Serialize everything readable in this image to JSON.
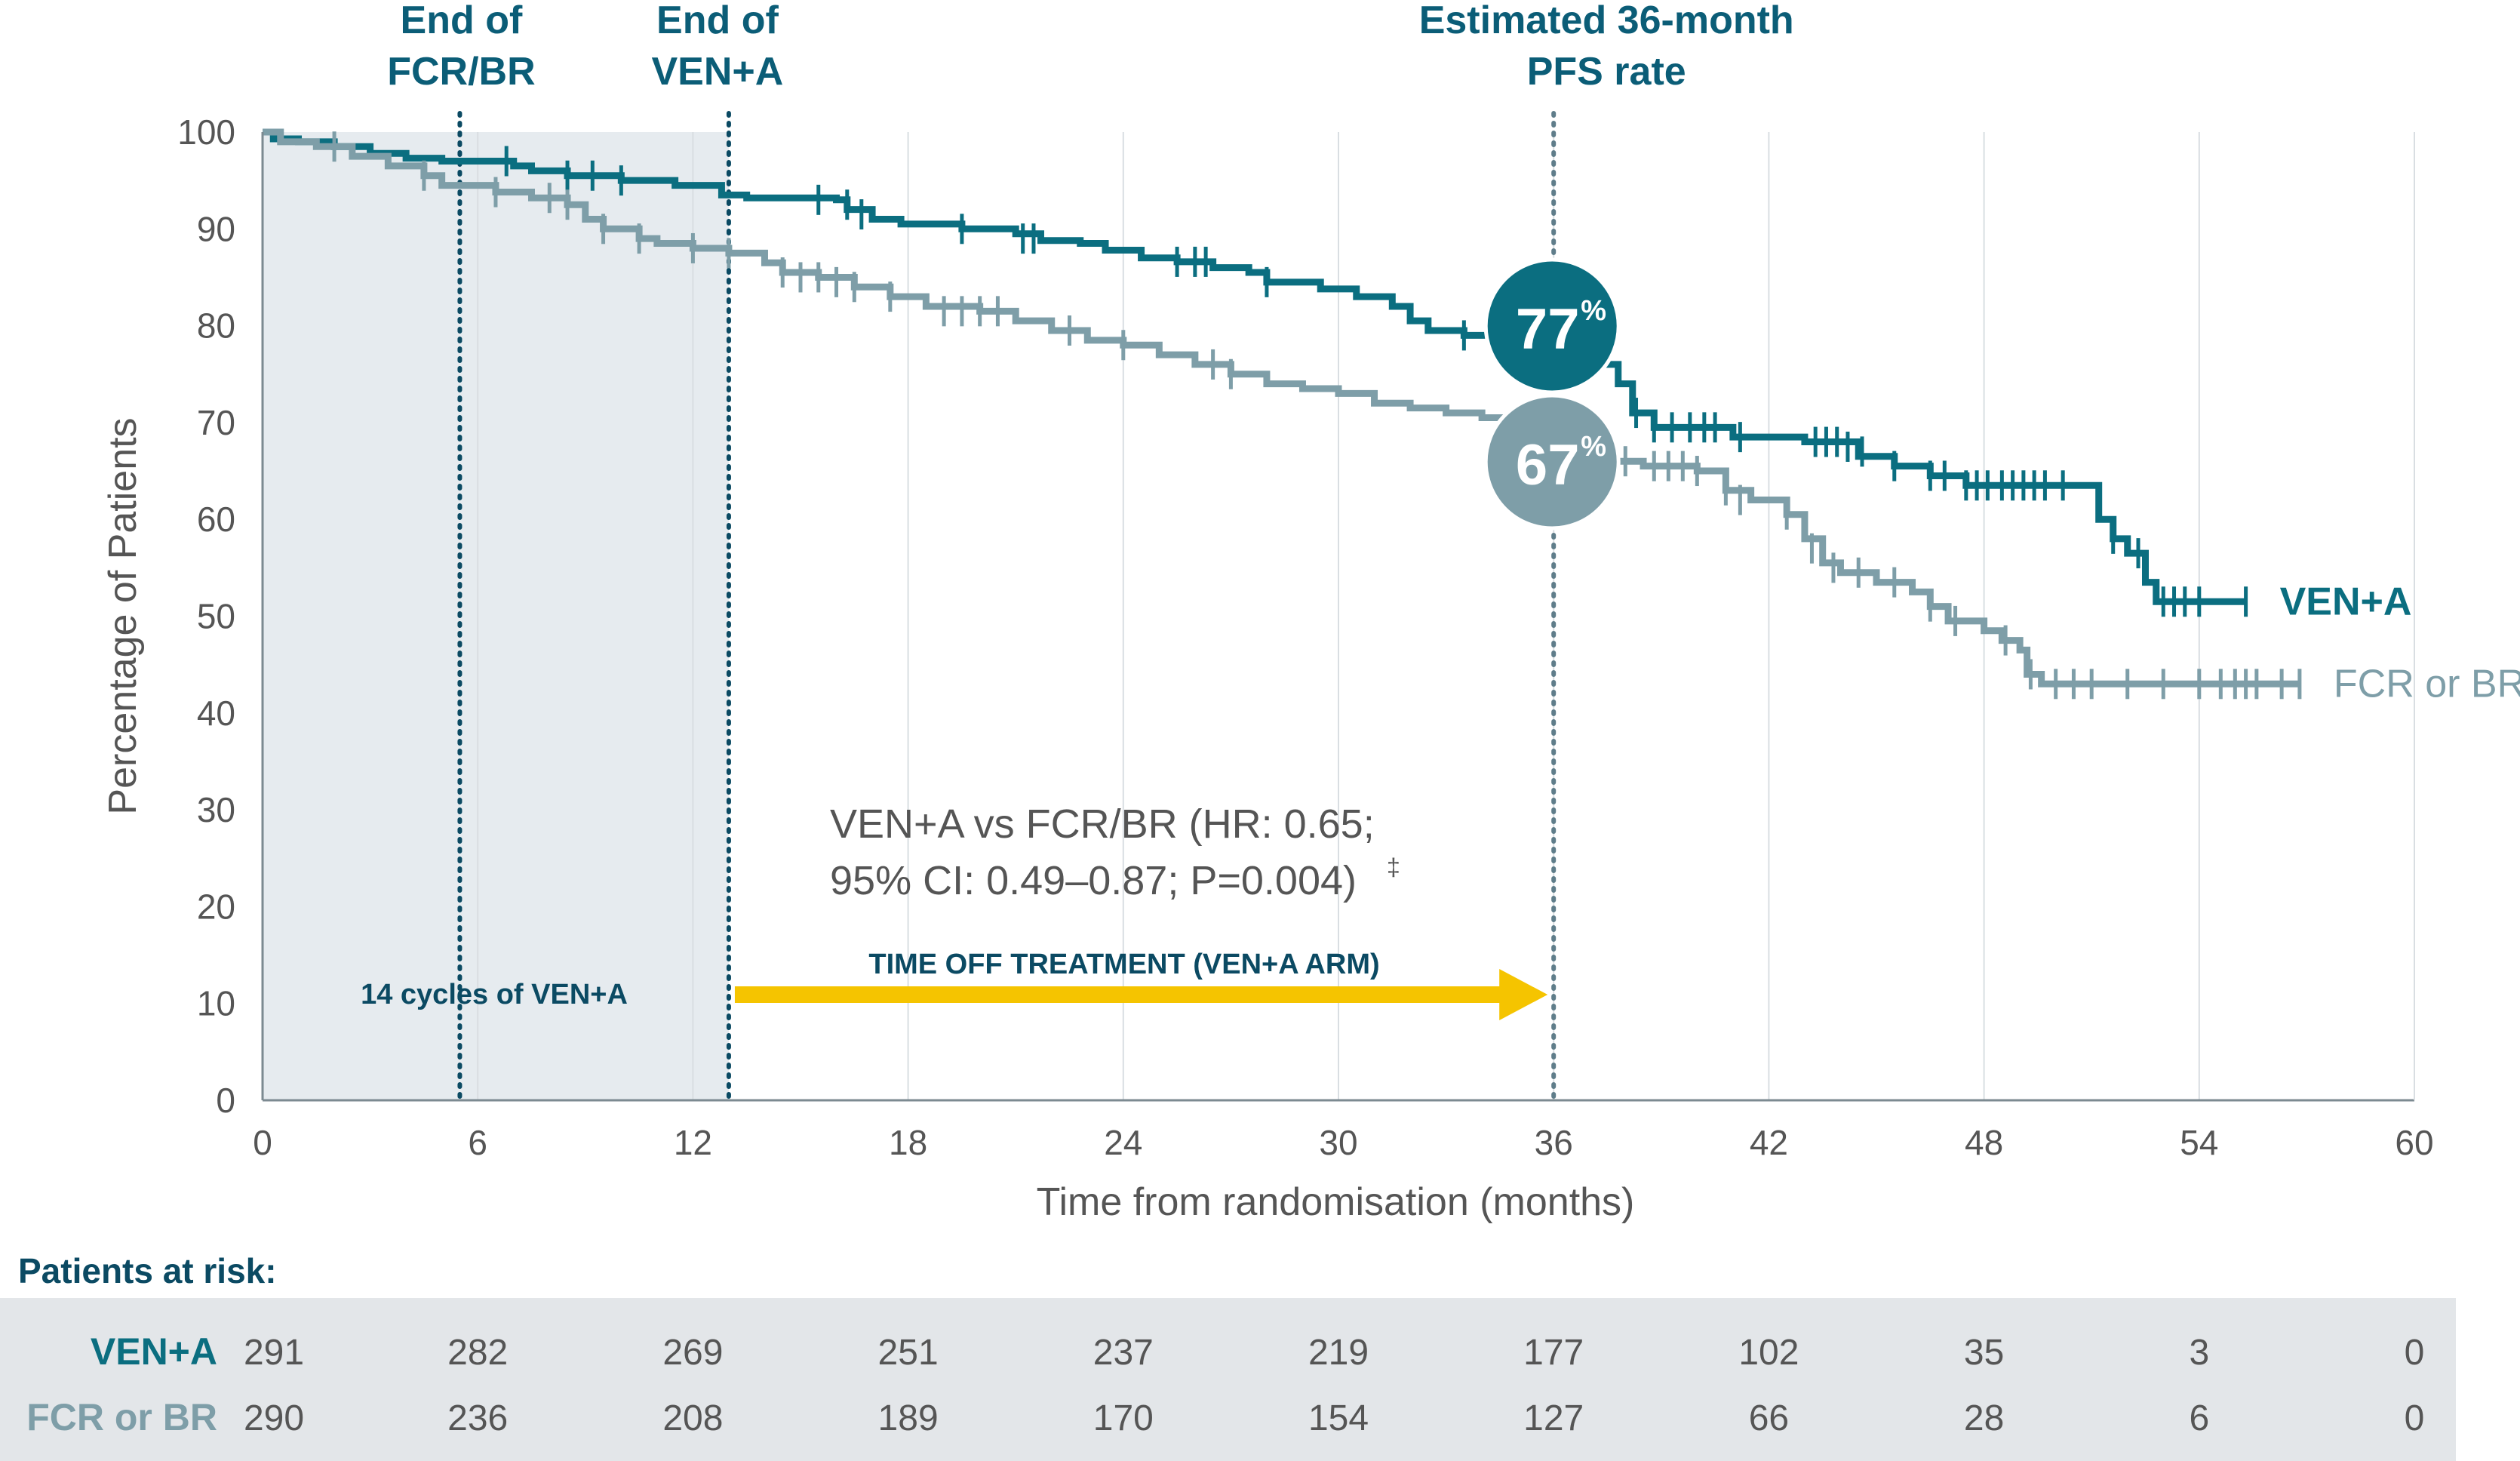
{
  "chart_data": {
    "type": "line",
    "subtype": "kaplan-meier",
    "xlabel": "Time from randomisation (months)",
    "ylabel": "Percentage of Patients",
    "xlim": [
      0,
      60
    ],
    "ylim": [
      0,
      100
    ],
    "x_ticks": [
      "0",
      "6",
      "12",
      "18",
      "24",
      "30",
      "36",
      "42",
      "48",
      "54",
      "60"
    ],
    "y_ticks": [
      "0",
      "10",
      "20",
      "30",
      "40",
      "50",
      "60",
      "70",
      "80",
      "90",
      "100"
    ],
    "series": [
      {
        "name": "VEN+A",
        "color": "#0b6e80",
        "points": [
          [
            0,
            100
          ],
          [
            0.3,
            99.3
          ],
          [
            1,
            99
          ],
          [
            2,
            98.5
          ],
          [
            3,
            97.8
          ],
          [
            4,
            97.3
          ],
          [
            5,
            97
          ],
          [
            6.8,
            97
          ],
          [
            7,
            96.5
          ],
          [
            7.5,
            96
          ],
          [
            8.5,
            95.5
          ],
          [
            10,
            95
          ],
          [
            11.5,
            94.5
          ],
          [
            12.8,
            93.5
          ],
          [
            13.5,
            93.2
          ],
          [
            16,
            93
          ],
          [
            16.3,
            92
          ],
          [
            17,
            91
          ],
          [
            17.8,
            90.5
          ],
          [
            19.5,
            90
          ],
          [
            21,
            89.5
          ],
          [
            21.7,
            88.8
          ],
          [
            22.8,
            88.5
          ],
          [
            23.5,
            87.8
          ],
          [
            24.5,
            87
          ],
          [
            25.5,
            86.6
          ],
          [
            26.5,
            86
          ],
          [
            27.5,
            85.5
          ],
          [
            28,
            84.5
          ],
          [
            29.5,
            83.8
          ],
          [
            30.5,
            83
          ],
          [
            31.5,
            82
          ],
          [
            32,
            80.5
          ],
          [
            32.5,
            79.5
          ],
          [
            33.5,
            79
          ],
          [
            35.5,
            78
          ],
          [
            36,
            77
          ],
          [
            37,
            76
          ],
          [
            37.8,
            74
          ],
          [
            38.2,
            71
          ],
          [
            38.8,
            69.5
          ],
          [
            41,
            68.5
          ],
          [
            43,
            68
          ],
          [
            44.5,
            66.5
          ],
          [
            45.5,
            65.5
          ],
          [
            46.5,
            64.5
          ],
          [
            47.5,
            63.5
          ],
          [
            50.8,
            63.5
          ],
          [
            51.2,
            60
          ],
          [
            51.6,
            58
          ],
          [
            52,
            56.5
          ],
          [
            52.5,
            53.5
          ],
          [
            52.8,
            51.5
          ],
          [
            55.3,
            51.5
          ]
        ],
        "censor_ticks": [
          [
            6.8,
            97
          ],
          [
            8.5,
            95.5
          ],
          [
            9.2,
            95.5
          ],
          [
            10,
            95
          ],
          [
            15.5,
            93
          ],
          [
            16.3,
            92.5
          ],
          [
            16.7,
            91.5
          ],
          [
            19.5,
            90
          ],
          [
            21.2,
            89
          ],
          [
            21.5,
            89
          ],
          [
            25.5,
            86.6
          ],
          [
            26,
            86.6
          ],
          [
            26.3,
            86.6
          ],
          [
            28,
            84.5
          ],
          [
            33.5,
            79
          ],
          [
            38.3,
            71
          ],
          [
            38.8,
            69.5
          ],
          [
            39.3,
            69.5
          ],
          [
            39.8,
            69.5
          ],
          [
            40.2,
            69.5
          ],
          [
            40.5,
            69.5
          ],
          [
            41.2,
            68.5
          ],
          [
            43.3,
            68
          ],
          [
            43.6,
            68
          ],
          [
            43.9,
            68
          ],
          [
            44.2,
            67.5
          ],
          [
            44.6,
            67
          ],
          [
            45.5,
            65.5
          ],
          [
            46.5,
            64.5
          ],
          [
            46.9,
            64.5
          ],
          [
            47.5,
            63.5
          ],
          [
            47.8,
            63.5
          ],
          [
            48.1,
            63.5
          ],
          [
            48.5,
            63.5
          ],
          [
            48.8,
            63.5
          ],
          [
            49.1,
            63.5
          ],
          [
            49.4,
            63.5
          ],
          [
            49.7,
            63.5
          ],
          [
            50.2,
            63.5
          ],
          [
            51.6,
            58
          ],
          [
            52.3,
            56.5
          ],
          [
            53,
            51.5
          ],
          [
            53.3,
            51.5
          ],
          [
            53.6,
            51.5
          ],
          [
            54,
            51.5
          ],
          [
            55.3,
            51.5
          ]
        ]
      },
      {
        "name": "FCR or BR",
        "color": "#7e9ea8",
        "points": [
          [
            0,
            100
          ],
          [
            0.5,
            99
          ],
          [
            1.5,
            98.5
          ],
          [
            2.5,
            97.5
          ],
          [
            3.5,
            96.5
          ],
          [
            4.5,
            95.5
          ],
          [
            5,
            94.5
          ],
          [
            6.5,
            93.8
          ],
          [
            7.5,
            93.2
          ],
          [
            8.5,
            92.5
          ],
          [
            9,
            91
          ],
          [
            9.5,
            90
          ],
          [
            10.5,
            89
          ],
          [
            11,
            88.5
          ],
          [
            12,
            88
          ],
          [
            13,
            87.5
          ],
          [
            14,
            86.5
          ],
          [
            14.5,
            85.5
          ],
          [
            15.5,
            85
          ],
          [
            16.5,
            84
          ],
          [
            17.5,
            83
          ],
          [
            18.5,
            82
          ],
          [
            20,
            81.5
          ],
          [
            21,
            80.5
          ],
          [
            22,
            79.5
          ],
          [
            23,
            78.5
          ],
          [
            24,
            78
          ],
          [
            25,
            77
          ],
          [
            26,
            76
          ],
          [
            27,
            75
          ],
          [
            28,
            74
          ],
          [
            29,
            73.5
          ],
          [
            30,
            73
          ],
          [
            31,
            72
          ],
          [
            32,
            71.5
          ],
          [
            33,
            71
          ],
          [
            34,
            70.5
          ],
          [
            35,
            70
          ],
          [
            36,
            67
          ],
          [
            37.5,
            66
          ],
          [
            38.5,
            65.5
          ],
          [
            40,
            65
          ],
          [
            40.8,
            63
          ],
          [
            41.5,
            62
          ],
          [
            42.5,
            60.5
          ],
          [
            43,
            58
          ],
          [
            43.5,
            55.5
          ],
          [
            44,
            54.5
          ],
          [
            45,
            53.5
          ],
          [
            46,
            52.5
          ],
          [
            46.5,
            51
          ],
          [
            47,
            49.5
          ],
          [
            48,
            48.5
          ],
          [
            48.5,
            47.5
          ],
          [
            49,
            46.5
          ],
          [
            49.2,
            44
          ],
          [
            49.6,
            43
          ],
          [
            56.8,
            43
          ]
        ],
        "censor_ticks": [
          [
            2,
            98.5
          ],
          [
            4.5,
            95.5
          ],
          [
            6.5,
            93.8
          ],
          [
            8,
            93.2
          ],
          [
            8.5,
            92.5
          ],
          [
            9.5,
            90
          ],
          [
            10.5,
            89
          ],
          [
            12,
            88
          ],
          [
            13,
            87.5
          ],
          [
            14.5,
            85.5
          ],
          [
            15,
            85
          ],
          [
            15.5,
            85
          ],
          [
            16,
            84.5
          ],
          [
            16.5,
            84
          ],
          [
            17.5,
            83
          ],
          [
            19,
            81.5
          ],
          [
            19.5,
            81.5
          ],
          [
            20,
            81.5
          ],
          [
            20.5,
            81.5
          ],
          [
            22.5,
            79.5
          ],
          [
            24,
            78
          ],
          [
            26.5,
            76
          ],
          [
            27,
            75
          ],
          [
            35,
            70
          ],
          [
            38,
            66
          ],
          [
            38.8,
            65.5
          ],
          [
            39.2,
            65.5
          ],
          [
            39.6,
            65.5
          ],
          [
            40,
            65
          ],
          [
            40.8,
            63
          ],
          [
            41.2,
            62
          ],
          [
            42.5,
            60.5
          ],
          [
            43.2,
            57
          ],
          [
            43.8,
            55
          ],
          [
            44.5,
            54.5
          ],
          [
            45.5,
            53.5
          ],
          [
            46.5,
            51
          ],
          [
            47.2,
            49.5
          ],
          [
            48.6,
            47.5
          ],
          [
            49.3,
            44
          ],
          [
            50,
            43
          ],
          [
            50.5,
            43
          ],
          [
            51,
            43
          ],
          [
            52,
            43
          ],
          [
            53,
            43
          ],
          [
            54,
            43
          ],
          [
            54.6,
            43
          ],
          [
            55,
            43
          ],
          [
            55.3,
            43
          ],
          [
            55.6,
            43
          ],
          [
            56.3,
            43
          ],
          [
            56.8,
            43
          ]
        ]
      }
    ],
    "landmarks": [
      {
        "x": 5.5,
        "label_lines": [
          "End of",
          "FCR/BR"
        ]
      },
      {
        "x": 13,
        "label_lines": [
          "End of",
          "VEN+A"
        ]
      },
      {
        "x": 36,
        "label_lines": [
          "Estimated 36-month",
          "PFS rate"
        ]
      }
    ],
    "estimates": [
      {
        "series": "VEN+A",
        "x": 36,
        "value": 77,
        "label": "77",
        "suffix": "%",
        "color": "#0b6e80"
      },
      {
        "series": "FCR or BR",
        "x": 36,
        "value": 67,
        "label": "67",
        "suffix": "%",
        "color": "#7e9ea8"
      }
    ],
    "shaded_region": {
      "x_from": 0,
      "x_to": 13,
      "color": "#e6ebef"
    },
    "annotations": {
      "shaded_label": "14 cycles of VEN+A",
      "arrow_label": "TIME OFF TREATMENT (VEN+A ARM)",
      "arrow_from": 13,
      "arrow_to": 36,
      "arrow_color": "#f5c400",
      "hr_line1": "VEN+A vs FCR/BR (HR: 0.65;",
      "hr_line2": "95% CI: 0.49–0.87; P=0.004)",
      "hr_footnote": "‡"
    },
    "risk_table": {
      "title": "Patients at risk:",
      "rows": [
        {
          "label": "VEN+A",
          "color": "#0b6e80",
          "values": [
            "291",
            "282",
            "269",
            "251",
            "237",
            "219",
            "177",
            "102",
            "35",
            "3",
            "0"
          ]
        },
        {
          "label": "FCR or BR",
          "color": "#7e9ea8",
          "values": [
            "290",
            "236",
            "208",
            "189",
            "170",
            "154",
            "127",
            "66",
            "28",
            "6",
            "0"
          ]
        }
      ]
    },
    "grid": true,
    "legend": "inline-right"
  }
}
